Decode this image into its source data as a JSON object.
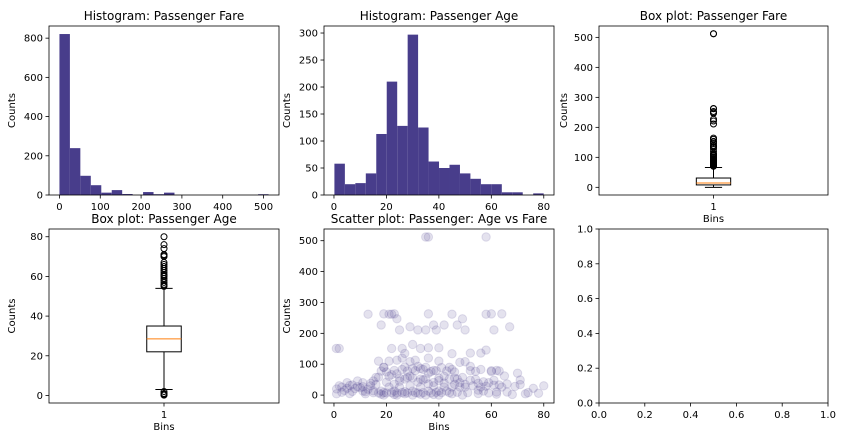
{
  "chart_data": [
    {
      "id": "hist-fare",
      "type": "bar",
      "title": "Histogram: Passenger Fare",
      "xlabel": "",
      "ylabel": "Counts",
      "xlim": [
        -25.6,
        537.9
      ],
      "ylim": [
        0,
        862
      ],
      "bar_color": "#483d8b",
      "xticks": [
        0,
        100,
        200,
        300,
        400,
        500
      ],
      "yticks": [
        0,
        200,
        400,
        600,
        800
      ],
      "bins": [
        {
          "x0": 0,
          "x1": 25.6,
          "count": 821
        },
        {
          "x0": 25.6,
          "x1": 51.2,
          "count": 239
        },
        {
          "x0": 51.2,
          "x1": 76.8,
          "count": 98
        },
        {
          "x0": 76.8,
          "x1": 102.5,
          "count": 50
        },
        {
          "x0": 102.5,
          "x1": 128.1,
          "count": 12
        },
        {
          "x0": 128.1,
          "x1": 153.7,
          "count": 25
        },
        {
          "x0": 153.7,
          "x1": 179.3,
          "count": 5
        },
        {
          "x0": 179.3,
          "x1": 204.9,
          "count": 0
        },
        {
          "x0": 204.9,
          "x1": 230.5,
          "count": 15
        },
        {
          "x0": 230.5,
          "x1": 256.2,
          "count": 4
        },
        {
          "x0": 256.2,
          "x1": 281.8,
          "count": 12
        },
        {
          "x0": 281.8,
          "x1": 307.4,
          "count": 0
        },
        {
          "x0": 486.7,
          "x1": 512.3,
          "count": 4
        }
      ]
    },
    {
      "id": "hist-age",
      "type": "bar",
      "title": "Histogram: Passenger Age",
      "xlabel": "",
      "ylabel": "Counts",
      "xlim": [
        -3.8,
        83.9
      ],
      "ylim": [
        0,
        313
      ],
      "bar_color": "#483d8b",
      "xticks": [
        0,
        20,
        40,
        60,
        80
      ],
      "yticks": [
        0,
        50,
        100,
        150,
        200,
        250,
        300
      ],
      "bins": [
        {
          "x0": 0.17,
          "x1": 4.16,
          "count": 58
        },
        {
          "x0": 4.16,
          "x1": 8.15,
          "count": 20
        },
        {
          "x0": 8.15,
          "x1": 12.14,
          "count": 22
        },
        {
          "x0": 12.14,
          "x1": 16.13,
          "count": 40
        },
        {
          "x0": 16.13,
          "x1": 20.12,
          "count": 113
        },
        {
          "x0": 20.12,
          "x1": 24.11,
          "count": 210
        },
        {
          "x0": 24.11,
          "x1": 28.1,
          "count": 128
        },
        {
          "x0": 28.1,
          "x1": 32.08,
          "count": 297
        },
        {
          "x0": 32.08,
          "x1": 36.07,
          "count": 125
        },
        {
          "x0": 36.07,
          "x1": 40.06,
          "count": 62
        },
        {
          "x0": 40.06,
          "x1": 44.05,
          "count": 50
        },
        {
          "x0": 44.05,
          "x1": 48.04,
          "count": 56
        },
        {
          "x0": 48.04,
          "x1": 52.03,
          "count": 40
        },
        {
          "x0": 52.03,
          "x1": 56.02,
          "count": 30
        },
        {
          "x0": 56.02,
          "x1": 60.01,
          "count": 20
        },
        {
          "x0": 60.01,
          "x1": 64.0,
          "count": 20
        },
        {
          "x0": 64.0,
          "x1": 67.99,
          "count": 5
        },
        {
          "x0": 67.99,
          "x1": 71.98,
          "count": 5
        },
        {
          "x0": 71.98,
          "x1": 75.97,
          "count": 0
        },
        {
          "x0": 75.97,
          "x1": 79.96,
          "count": 3
        }
      ]
    },
    {
      "id": "box-fare",
      "type": "box",
      "title": "Box plot: Passenger Fare",
      "xlabel": "Bins",
      "ylabel": "Counts",
      "ylim": [
        -25.6,
        537.9
      ],
      "yticks": [
        0,
        100,
        200,
        300,
        400,
        500
      ],
      "xtick": "1",
      "box": {
        "whisker_low": 0,
        "q1": 8,
        "median": 14.5,
        "q3": 31,
        "whisker_high": 66
      },
      "outliers": [
        70,
        72,
        74,
        76,
        78,
        80,
        82,
        84,
        86,
        89,
        91,
        93,
        96,
        99,
        102,
        106,
        108,
        110,
        113,
        120,
        128,
        134,
        136,
        140,
        146,
        151,
        153,
        160,
        164,
        211,
        221,
        227,
        247,
        249,
        253,
        262,
        263,
        512,
        512
      ]
    },
    {
      "id": "box-age",
      "type": "box",
      "title": "Box plot: Passenger Age",
      "xlabel": "Bins",
      "ylabel": "Counts",
      "ylim": [
        -3.8,
        83.9
      ],
      "yticks": [
        0,
        20,
        40,
        60,
        80
      ],
      "xtick": "1",
      "box": {
        "whisker_low": 3,
        "q1": 22,
        "median": 28.5,
        "q3": 35,
        "whisker_high": 54
      },
      "outliers": [
        0.17,
        0.33,
        0.42,
        0.67,
        0.75,
        0.83,
        0.92,
        1,
        2,
        55,
        55.5,
        56,
        57,
        58,
        59,
        60,
        60.5,
        61,
        62,
        63,
        64,
        65,
        66,
        67,
        70,
        70.5,
        71,
        74,
        76,
        80
      ]
    },
    {
      "id": "scatter-age-fare",
      "type": "scatter",
      "title": "Scatter plot: Passenger: Age vs Fare",
      "xlabel": "Bins",
      "ylabel": "Counts",
      "xlim": [
        -3.8,
        83.9
      ],
      "ylim": [
        -25.6,
        537.9
      ],
      "xticks": [
        0,
        20,
        40,
        60,
        80
      ],
      "yticks": [
        0,
        100,
        200,
        300,
        400,
        500
      ],
      "color": "#483d8b",
      "alpha": 0.15,
      "points": [
        [
          0.9,
          151
        ],
        [
          2,
          151
        ],
        [
          1,
          20
        ],
        [
          2,
          30
        ],
        [
          3,
          26
        ],
        [
          4,
          15
        ],
        [
          5,
          22
        ],
        [
          6,
          31
        ],
        [
          8,
          21
        ],
        [
          9,
          27
        ],
        [
          10,
          24
        ],
        [
          11,
          40
        ],
        [
          12,
          11
        ],
        [
          13,
          19
        ],
        [
          14,
          30
        ],
        [
          15,
          8
        ],
        [
          16,
          34
        ],
        [
          17,
          7
        ],
        [
          18,
          13
        ],
        [
          19,
          8
        ],
        [
          20,
          7
        ],
        [
          21,
          26
        ],
        [
          22,
          8
        ],
        [
          23,
          13
        ],
        [
          24,
          7
        ],
        [
          25,
          26
        ],
        [
          26,
          8
        ],
        [
          27,
          11
        ],
        [
          28,
          7
        ],
        [
          29,
          30
        ],
        [
          30,
          13
        ],
        [
          31,
          8
        ],
        [
          32,
          7
        ],
        [
          33,
          26
        ],
        [
          34,
          8
        ],
        [
          35,
          53
        ],
        [
          36,
          13
        ],
        [
          37,
          7
        ],
        [
          38,
          30
        ],
        [
          39,
          9
        ],
        [
          40,
          13
        ],
        [
          41,
          8
        ],
        [
          42,
          26
        ],
        [
          43,
          13
        ],
        [
          44,
          8
        ],
        [
          45,
          26
        ],
        [
          46,
          35
        ],
        [
          47,
          9
        ],
        [
          48,
          26
        ],
        [
          49,
          57
        ],
        [
          50,
          26
        ],
        [
          51,
          8
        ],
        [
          52,
          79
        ],
        [
          53,
          30
        ],
        [
          54,
          51
        ],
        [
          55,
          16
        ],
        [
          56,
          26
        ],
        [
          57,
          13
        ],
        [
          58,
          29
        ],
        [
          59,
          7
        ],
        [
          60,
          79
        ],
        [
          61,
          32
        ],
        [
          62,
          10
        ],
        [
          63,
          78
        ],
        [
          64,
          26
        ],
        [
          65,
          62
        ],
        [
          66,
          10
        ],
        [
          70,
          71
        ],
        [
          71,
          34
        ],
        [
          74,
          8
        ],
        [
          80,
          30
        ],
        [
          18,
          78
        ],
        [
          19,
          90
        ],
        [
          20,
          75
        ],
        [
          21,
          61
        ],
        [
          22,
          66
        ],
        [
          23,
          80
        ],
        [
          24,
          69
        ],
        [
          25,
          55
        ],
        [
          26,
          83
        ],
        [
          27,
          91
        ],
        [
          28,
          78
        ],
        [
          29,
          61
        ],
        [
          30,
          86
        ],
        [
          31,
          79
        ],
        [
          32,
          93
        ],
        [
          33,
          52
        ],
        [
          34,
          83
        ],
        [
          35,
          90
        ],
        [
          36,
          71
        ],
        [
          37,
          76
        ],
        [
          38,
          80
        ],
        [
          39,
          79
        ],
        [
          40,
          55
        ],
        [
          41,
          89
        ],
        [
          42,
          61
        ],
        [
          43,
          78
        ],
        [
          44,
          90
        ],
        [
          45,
          83
        ],
        [
          46,
          75
        ],
        [
          47,
          52
        ],
        [
          48,
          106
        ],
        [
          50,
          108
        ],
        [
          52,
          93
        ],
        [
          54,
          77
        ],
        [
          56,
          83
        ],
        [
          58,
          146
        ],
        [
          60,
          76
        ],
        [
          62,
          80
        ],
        [
          45,
          134
        ],
        [
          40,
          110
        ],
        [
          36,
          120
        ],
        [
          33,
          86
        ],
        [
          31,
          113
        ],
        [
          29,
          108
        ],
        [
          27,
          135
        ],
        [
          26,
          120
        ],
        [
          24,
          113
        ],
        [
          22,
          151
        ],
        [
          21,
          110
        ],
        [
          19,
          90
        ],
        [
          16,
          57
        ],
        [
          17,
          110
        ],
        [
          18,
          227
        ],
        [
          19,
          263
        ],
        [
          21,
          262
        ],
        [
          23,
          263
        ],
        [
          24,
          247
        ],
        [
          25,
          211
        ],
        [
          26,
          151
        ],
        [
          29,
          221
        ],
        [
          30,
          164
        ],
        [
          32,
          211
        ],
        [
          33,
          151
        ],
        [
          35,
          211
        ],
        [
          36,
          153
        ],
        [
          38,
          227
        ],
        [
          39,
          211
        ],
        [
          40,
          153
        ],
        [
          42,
          227
        ],
        [
          45,
          262
        ],
        [
          47,
          227
        ],
        [
          49,
          247
        ],
        [
          50,
          211
        ],
        [
          52,
          136
        ],
        [
          56,
          136
        ],
        [
          58,
          262
        ],
        [
          60,
          263
        ],
        [
          61,
          211
        ],
        [
          64,
          263
        ],
        [
          67,
          221
        ],
        [
          36,
          263
        ],
        [
          13,
          262
        ],
        [
          22,
          262
        ],
        [
          35,
          512
        ],
        [
          36,
          512
        ],
        [
          58,
          512
        ],
        [
          5,
          40
        ],
        [
          7,
          33
        ],
        [
          9,
          46
        ],
        [
          11,
          27
        ],
        [
          14,
          38
        ],
        [
          15,
          46
        ],
        [
          17,
          58
        ],
        [
          20,
          42
        ],
        [
          23,
          35
        ],
        [
          25,
          45
        ],
        [
          27,
          52
        ],
        [
          28,
          57
        ],
        [
          30,
          56
        ],
        [
          32,
          42
        ],
        [
          34,
          49
        ],
        [
          36,
          36
        ],
        [
          38,
          41
        ],
        [
          40,
          47
        ],
        [
          42,
          39
        ],
        [
          44,
          52
        ],
        [
          46,
          55
        ],
        [
          48,
          40
        ],
        [
          50,
          35
        ],
        [
          52,
          48
        ],
        [
          55,
          38
        ],
        [
          57,
          43
        ],
        [
          59,
          40
        ],
        [
          61,
          48
        ],
        [
          63,
          33
        ],
        [
          66,
          36
        ],
        [
          69,
          28
        ],
        [
          71,
          49
        ],
        [
          76,
          22
        ],
        [
          6,
          5
        ],
        [
          12,
          4
        ],
        [
          18,
          3
        ],
        [
          23,
          2
        ],
        [
          27,
          4
        ],
        [
          33,
          3
        ],
        [
          38,
          2
        ],
        [
          45,
          4
        ],
        [
          49,
          0
        ],
        [
          55,
          5
        ],
        [
          62,
          3
        ],
        [
          68,
          2
        ],
        [
          73,
          4
        ],
        [
          78,
          6
        ],
        [
          30,
          0
        ],
        [
          35,
          0
        ],
        [
          40,
          0
        ],
        [
          24,
          0
        ],
        [
          19,
          0
        ],
        [
          15,
          14
        ],
        [
          11,
          13
        ],
        [
          7,
          12
        ],
        [
          3,
          9
        ],
        [
          1,
          4
        ]
      ]
    },
    {
      "id": "empty-axes",
      "type": "scatter",
      "title": "",
      "xlabel": "",
      "ylabel": "",
      "xlim": [
        0,
        1
      ],
      "ylim": [
        0,
        1
      ],
      "xticks": [
        "0.0",
        "0.2",
        "0.4",
        "0.6",
        "0.8",
        "1.0"
      ],
      "yticks": [
        "0.0",
        "0.2",
        "0.4",
        "0.6",
        "0.8",
        "1.0"
      ],
      "points": []
    }
  ]
}
